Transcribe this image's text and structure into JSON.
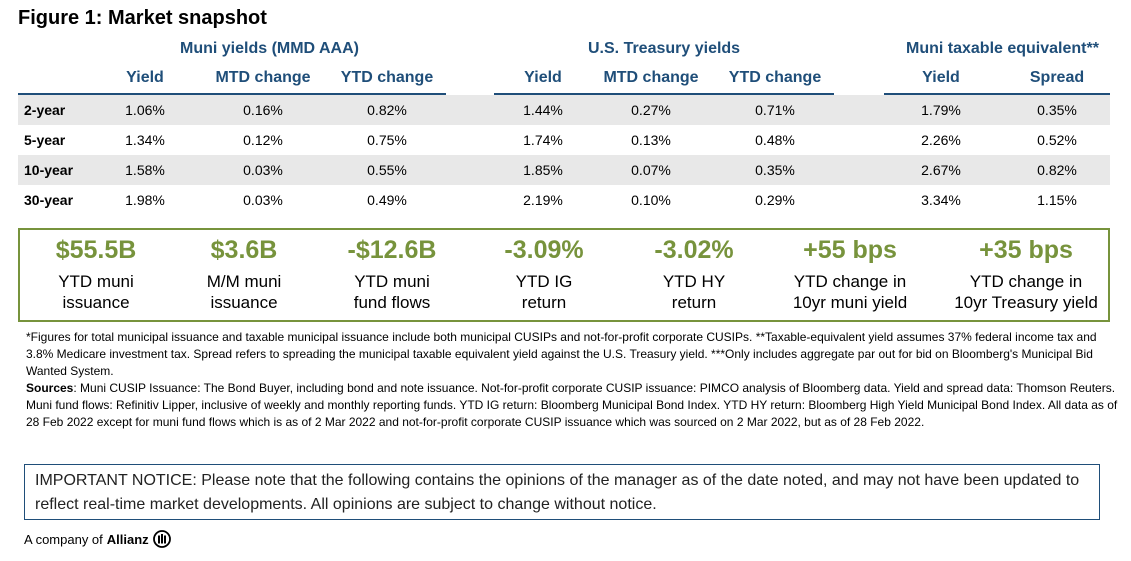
{
  "title": "Figure 1: Market snapshot",
  "groups": {
    "muni": {
      "title": "Muni yields (MMD AAA)",
      "headers": [
        "Yield",
        "MTD change",
        "YTD change"
      ]
    },
    "treasury": {
      "title": "U.S. Treasury yields",
      "headers": [
        "Yield",
        "MTD change",
        "YTD change"
      ]
    },
    "taxable": {
      "title": "Muni taxable equivalent**",
      "headers": [
        "Yield",
        "Spread"
      ]
    }
  },
  "rows": [
    {
      "label": "2-year",
      "muni": [
        "1.06%",
        "0.16%",
        "0.82%"
      ],
      "treasury": [
        "1.44%",
        "0.27%",
        "0.71%"
      ],
      "taxable": [
        "1.79%",
        "0.35%"
      ]
    },
    {
      "label": "5-year",
      "muni": [
        "1.34%",
        "0.12%",
        "0.75%"
      ],
      "treasury": [
        "1.74%",
        "0.13%",
        "0.48%"
      ],
      "taxable": [
        "2.26%",
        "0.52%"
      ]
    },
    {
      "label": "10-year",
      "muni": [
        "1.58%",
        "0.03%",
        "0.55%"
      ],
      "treasury": [
        "1.85%",
        "0.07%",
        "0.35%"
      ],
      "taxable": [
        "2.67%",
        "0.82%"
      ]
    },
    {
      "label": "30-year",
      "muni": [
        "1.98%",
        "0.03%",
        "0.49%"
      ],
      "treasury": [
        "2.19%",
        "0.10%",
        "0.29%"
      ],
      "taxable": [
        "3.34%",
        "1.15%"
      ]
    }
  ],
  "kpis": [
    {
      "value": "$55.5B",
      "line1": "YTD muni",
      "line2": "issuance"
    },
    {
      "value": "$3.6B",
      "line1": "M/M muni",
      "line2": "issuance"
    },
    {
      "value": "-$12.6B",
      "line1": "YTD muni",
      "line2": "fund flows"
    },
    {
      "value": "-3.09%",
      "line1": "YTD IG",
      "line2": "return"
    },
    {
      "value": "-3.02%",
      "line1": "YTD HY",
      "line2": "return"
    },
    {
      "value": "+55 bps",
      "line1": "YTD change in",
      "line2": "10yr muni yield"
    },
    {
      "value": "+35 bps",
      "line1": "YTD change in",
      "line2": "10yr Treasury yield"
    }
  ],
  "notes": {
    "footnote": "*Figures for total municipal issuance and taxable municipal issuance include both municipal CUSIPs and not-for-profit corporate CUSIPs. **Taxable-equivalent yield assumes 37% federal income tax and 3.8% Medicare investment tax. Spread refers to spreading the municipal taxable equivalent yield against the U.S. Treasury yield. ***Only includes aggregate par out for bid on Bloomberg's Municipal Bid Wanted System.",
    "sources_label": "Sources",
    "sources_text": ": Muni CUSIP Issuance: The Bond Buyer, including bond and note issuance. Not-for-profit corporate CUSIP issuance: PIMCO analysis of Bloomberg data. Yield and spread data: Thomson Reuters. Muni fund flows: Refinitiv Lipper, inclusive of weekly and monthly reporting funds. YTD IG return: Bloomberg Municipal Bond Index. YTD HY return: Bloomberg High Yield Municipal Bond Index. All data as of 28 Feb 2022 except for muni fund flows which is as of 2 Mar 2022 and not-for-profit corporate CUSIP issuance which was sourced on 2 Mar 2022, but as of 28 Feb 2022."
  },
  "notice": "IMPORTANT NOTICE: Please note that the following contains the opinions of the manager as of the date noted, and may not have been updated to reflect real-time market developments. All opinions are subject to change without notice.",
  "footer": {
    "prefix": "A company of",
    "brand": "Allianz"
  },
  "colors": {
    "header_blue": "#1f4e79",
    "accent_green": "#77933c",
    "row_shade": "#e8e8e8"
  }
}
